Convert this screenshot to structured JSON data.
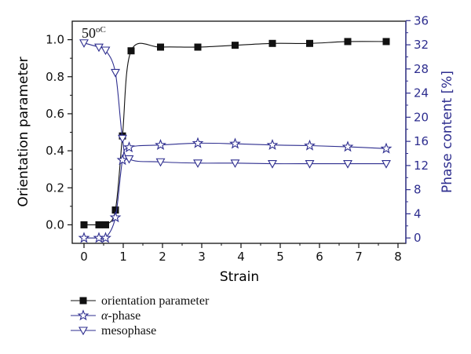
{
  "chart_data": {
    "type": "line",
    "annotation": "50",
    "annotation_unit": "oC",
    "x_axis": {
      "label": "Strain",
      "range": [
        -0.3,
        8.2
      ],
      "ticks": [
        0,
        1,
        2,
        3,
        4,
        5,
        6,
        7,
        8
      ]
    },
    "y_left": {
      "label": "Orientation parameter",
      "range": [
        -0.1,
        1.1
      ],
      "ticks": [
        "0.0",
        "0.2",
        "0.4",
        "0.6",
        "0.8",
        "1.0"
      ],
      "color": "#111111"
    },
    "y_right": {
      "label": "Phase content [%]",
      "range": [
        -0.89,
        35.91
      ],
      "ticks": [
        0,
        4,
        8,
        12,
        16,
        20,
        24,
        28,
        32,
        36
      ],
      "color": "#2e2e8f"
    },
    "series": [
      {
        "name": "orientation parameter",
        "axis": "left",
        "marker": "square",
        "color": "#111111",
        "x": [
          0,
          0.38,
          0.55,
          0.8,
          0.98,
          1.2,
          1.95,
          2.9,
          3.85,
          4.8,
          5.75,
          6.72,
          7.7
        ],
        "y": [
          0.0,
          0.0,
          0.0,
          0.08,
          0.48,
          0.94,
          0.96,
          0.96,
          0.97,
          0.98,
          0.98,
          0.99,
          0.99
        ]
      },
      {
        "name": "α-phase",
        "axis": "right",
        "marker": "star",
        "color": "#2e2e8f",
        "x": [
          0,
          0.38,
          0.55,
          0.8,
          0.98,
          1.15,
          1.95,
          2.9,
          3.85,
          4.8,
          5.75,
          6.72,
          7.7
        ],
        "y": [
          0,
          0,
          0,
          3.4,
          12.9,
          15.0,
          15.4,
          15.7,
          15.6,
          15.4,
          15.3,
          15.1,
          14.8
        ]
      },
      {
        "name": "mesophase",
        "axis": "right",
        "marker": "triangle-down",
        "color": "#2e2e8f",
        "x": [
          0,
          0.38,
          0.55,
          0.8,
          0.98,
          1.15,
          1.95,
          2.9,
          3.85,
          4.8,
          5.75,
          6.72,
          7.7
        ],
        "y": [
          32.3,
          31.6,
          31.1,
          27.4,
          16.5,
          13.1,
          12.6,
          12.4,
          12.4,
          12.3,
          12.3,
          12.3,
          12.3
        ]
      }
    ],
    "legend": {
      "placement": "bottom-left",
      "entries": [
        "orientation parameter",
        "α-phase",
        "mesophase"
      ]
    }
  }
}
